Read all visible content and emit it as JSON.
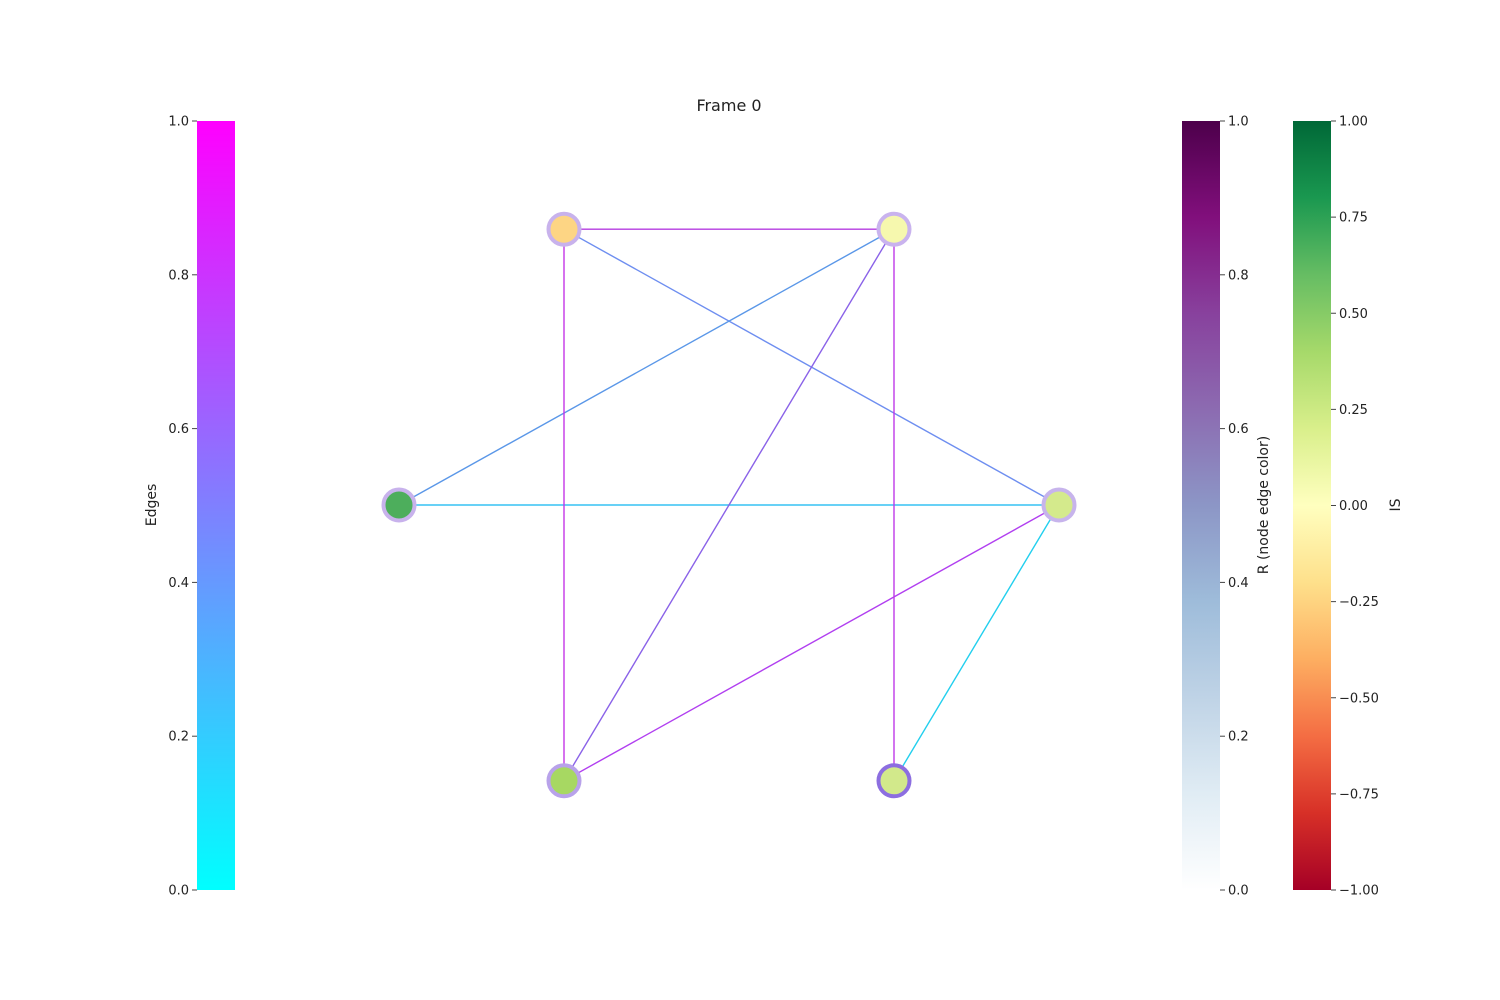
{
  "title": "Frame 0",
  "colorbars": {
    "edges": {
      "label": "Edges",
      "colors": [
        "#00ffff",
        "#ff00ff"
      ],
      "range": [
        0,
        1
      ],
      "ticks": [
        "0.0",
        "0.2",
        "0.4",
        "0.6",
        "0.8",
        "1.0"
      ]
    },
    "r": {
      "label": "R (node edge color)",
      "colors": [
        "#ffffff",
        "#e0ecf4",
        "#bfd3e6",
        "#9ebcda",
        "#8c96c6",
        "#8c6bb1",
        "#88419d",
        "#810f7c",
        "#4d004b"
      ],
      "range": [
        0,
        1
      ],
      "ticks": [
        "0.0",
        "0.2",
        "0.4",
        "0.6",
        "0.8",
        "1.0"
      ]
    },
    "is": {
      "label": "IS",
      "colors": [
        "#a50026",
        "#d73027",
        "#f46d43",
        "#fdae61",
        "#fee08b",
        "#ffffbf",
        "#d9ef8b",
        "#a6d96a",
        "#66bd63",
        "#1a9850",
        "#006837"
      ],
      "range": [
        -1,
        1
      ],
      "ticks": [
        "−1.00",
        "−0.75",
        "−0.50",
        "−0.25",
        "0.00",
        "0.25",
        "0.50",
        "0.75",
        "1.00"
      ]
    }
  },
  "nodes": [
    {
      "id": 0,
      "fill": "#d4ea8c",
      "ring": "#c7b4ec"
    },
    {
      "id": 1,
      "fill": "#f6f8ae",
      "ring": "#c9b3ee"
    },
    {
      "id": 2,
      "fill": "#fdd584",
      "ring": "#c8b2ec"
    },
    {
      "id": 3,
      "fill": "#4dae5c",
      "ring": "#c8b2ec"
    },
    {
      "id": 4,
      "fill": "#a7d862",
      "ring": "#b8a2ea"
    },
    {
      "id": 5,
      "fill": "#d2e98b",
      "ring": "#8c6ee0"
    }
  ],
  "edges": [
    {
      "source": 0,
      "target": 5,
      "color": "#22cfee"
    },
    {
      "source": 0,
      "target": 4,
      "color": "#b13ff0"
    },
    {
      "source": 0,
      "target": 3,
      "color": "#36c2f4"
    },
    {
      "source": 0,
      "target": 2,
      "color": "#6e8ef0"
    },
    {
      "source": 1,
      "target": 5,
      "color": "#bf3ae8"
    },
    {
      "source": 1,
      "target": 4,
      "color": "#8a62e8"
    },
    {
      "source": 1,
      "target": 3,
      "color": "#5a97e8"
    },
    {
      "source": 1,
      "target": 2,
      "color": "#b43ce0"
    },
    {
      "source": 2,
      "target": 4,
      "color": "#c436e6"
    }
  ]
}
